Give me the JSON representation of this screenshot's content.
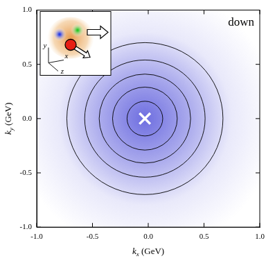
{
  "chart_data": {
    "type": "contour",
    "title": "down",
    "x_label": "kx (GeV)",
    "y_label": "ky (GeV)",
    "xlim": [
      -1,
      1
    ],
    "ylim": [
      -1,
      1
    ],
    "xticks": [
      {
        "value": -1,
        "label": "-1.0"
      },
      {
        "value": -0.5,
        "label": "-0.5"
      },
      {
        "value": 0,
        "label": "0.0"
      },
      {
        "value": 0.5,
        "label": "0.5"
      },
      {
        "value": 1,
        "label": "1.0"
      }
    ],
    "yticks": [
      {
        "value": -1,
        "label": "-1.0"
      },
      {
        "value": -0.5,
        "label": "-0.5"
      },
      {
        "value": 0,
        "label": "0.0"
      },
      {
        "value": 0.5,
        "label": "0.5"
      },
      {
        "value": 1,
        "label": "1.0"
      }
    ],
    "center": [
      -0.03,
      0
    ],
    "contour_radii": [
      0.16,
      0.29,
      0.41,
      0.54,
      0.7
    ],
    "marker": "cross",
    "color": "#4a4ad8",
    "grid": false,
    "inset": {
      "axis_labels": [
        "x",
        "y",
        "z"
      ]
    }
  }
}
